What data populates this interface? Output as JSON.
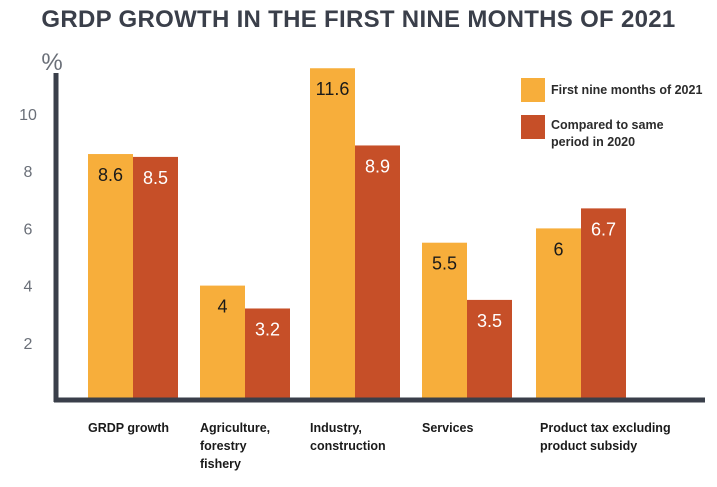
{
  "chart_data": {
    "type": "bar",
    "title": "GRDP GROWTH IN THE FIRST NINE MONTHS OF 2021",
    "ylabel": "%",
    "xlabel": "",
    "ylim": [
      0,
      11.5
    ],
    "yticks": [
      2,
      4,
      6,
      8,
      10
    ],
    "grid": false,
    "legend_position": "top-right",
    "categories": [
      [
        "GRDP growth"
      ],
      [
        "Agriculture,",
        "forestry",
        "fishery"
      ],
      [
        "Industry,",
        "construction"
      ],
      [
        "Services"
      ],
      [
        "Product tax excluding",
        "product subsidy"
      ]
    ],
    "series": [
      {
        "name": "First nine months of 2021",
        "color": "#f7ae3b",
        "labelColor": "#1a1a1a",
        "values": [
          8.6,
          4,
          11.6,
          5.5,
          6
        ]
      },
      {
        "name": "Compared to same period in 2020",
        "color": "#c64f28",
        "labelColor": "#ffffff",
        "values": [
          8.5,
          3.2,
          8.9,
          3.5,
          6.7
        ]
      }
    ],
    "legend": {
      "item0": "First nine months of 2021",
      "item1_line1": "Compared to same",
      "item1_line2": "period in 2020"
    },
    "axis_color": "#3a3f4a"
  }
}
